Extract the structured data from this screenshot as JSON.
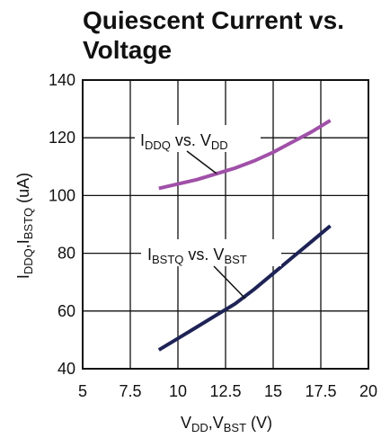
{
  "chart_data": {
    "type": "line",
    "title": "Quiescent Current vs. Voltage",
    "xlabel": {
      "main1": "V",
      "sub1": "DD",
      "sep": ",V",
      "sub2": "BST",
      "tail": " (V)"
    },
    "ylabel": {
      "main1": "I",
      "sub1": "DDQ",
      "sep": ",I",
      "sub2": "BSTQ",
      "tail": " (uA)"
    },
    "xlim": [
      5,
      20
    ],
    "ylim": [
      40,
      140
    ],
    "xticks": [
      5,
      7.5,
      10,
      12.5,
      15,
      17.5,
      20
    ],
    "xtick_labels": [
      "5",
      "7.5",
      "10",
      "12.5",
      "15",
      "17.5",
      "20"
    ],
    "yticks": [
      40,
      60,
      80,
      100,
      120,
      140
    ],
    "ytick_labels": [
      "40",
      "60",
      "80",
      "100",
      "120",
      "140"
    ],
    "grid": true,
    "series": [
      {
        "color": "#a050a8",
        "x": [
          9,
          10,
          11,
          12,
          13,
          14,
          15,
          16,
          17,
          18
        ],
        "y": [
          102.5,
          104,
          105.5,
          107.5,
          109.5,
          112,
          115,
          118.5,
          122,
          126
        ]
      },
      {
        "color": "#1e2356",
        "x": [
          9,
          10,
          11,
          12,
          13,
          14,
          15,
          16,
          17,
          18
        ],
        "y": [
          46.5,
          50.5,
          54.5,
          58.5,
          62.5,
          67.5,
          73,
          78.5,
          84,
          89.5
        ]
      }
    ],
    "annotations": [
      {
        "main": "I",
        "sub": "DDQ",
        "mid": " vs. V",
        "sub2": "DD"
      },
      {
        "main": "I",
        "sub": "BSTQ",
        "mid": " vs. V",
        "sub2": "BST"
      }
    ]
  }
}
